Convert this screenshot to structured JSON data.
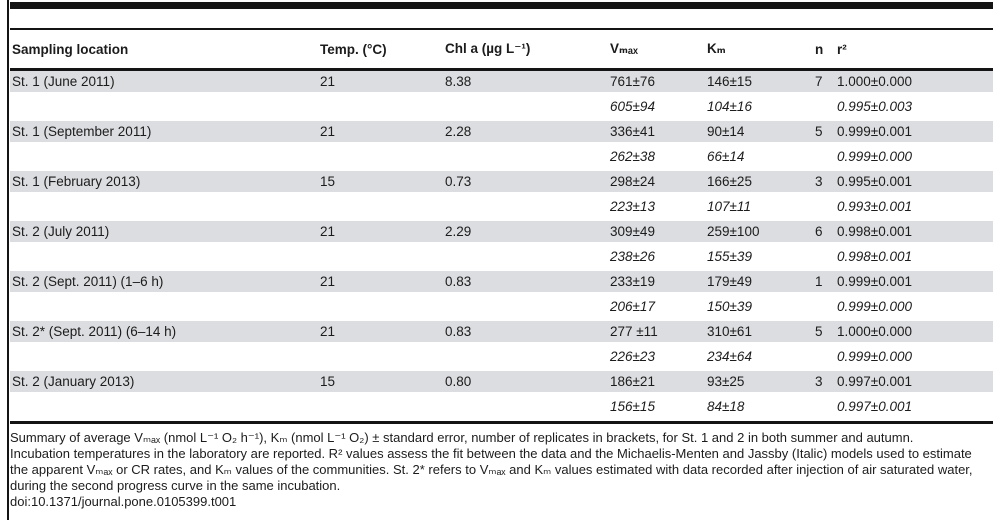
{
  "table": {
    "columns": [
      "Sampling location",
      "Temp. (°C)",
      "Chl a (µg L⁻¹)",
      "Vₘₐₓ",
      "Kₘ",
      "n",
      "r²"
    ],
    "rows": [
      {
        "shaded": true,
        "italic": false,
        "cells": [
          "St. 1 (June 2011)",
          "21",
          "8.38",
          "761±76",
          "146±15",
          "7",
          "1.000±0.000"
        ]
      },
      {
        "shaded": false,
        "italic": true,
        "cells": [
          "",
          "",
          "",
          "605±94",
          "104±16",
          "",
          "0.995±0.003"
        ]
      },
      {
        "shaded": true,
        "italic": false,
        "cells": [
          "St. 1 (September 2011)",
          "21",
          "2.28",
          "336±41",
          "90±14",
          "5",
          "0.999±0.001"
        ]
      },
      {
        "shaded": false,
        "italic": true,
        "cells": [
          "",
          "",
          "",
          "262±38",
          "66±14",
          "",
          "0.999±0.000"
        ]
      },
      {
        "shaded": true,
        "italic": false,
        "cells": [
          "St. 1 (February 2013)",
          "15",
          "0.73",
          "298±24",
          "166±25",
          "3",
          "0.995±0.001"
        ]
      },
      {
        "shaded": false,
        "italic": true,
        "cells": [
          "",
          "",
          "",
          "223±13",
          "107±11",
          "",
          "0.993±0.001"
        ]
      },
      {
        "shaded": true,
        "italic": false,
        "cells": [
          "St. 2 (July 2011)",
          "21",
          "2.29",
          "309±49",
          "259±100",
          "6",
          "0.998±0.001"
        ]
      },
      {
        "shaded": false,
        "italic": true,
        "cells": [
          "",
          "",
          "",
          "238±26",
          "155±39",
          "",
          "0.998±0.001"
        ]
      },
      {
        "shaded": true,
        "italic": false,
        "cells": [
          "St. 2 (Sept. 2011) (1–6 h)",
          "21",
          "0.83",
          "233±19",
          "179±49",
          "1",
          "0.999±0.001"
        ]
      },
      {
        "shaded": false,
        "italic": true,
        "cells": [
          "",
          "",
          "",
          "206±17",
          "150±39",
          "",
          "0.999±0.000"
        ]
      },
      {
        "shaded": true,
        "italic": false,
        "cells": [
          "St. 2* (Sept. 2011) (6–14 h)",
          "21",
          "0.83",
          "277 ±11",
          "310±61",
          "5",
          "1.000±0.000"
        ]
      },
      {
        "shaded": false,
        "italic": true,
        "cells": [
          "",
          "",
          "",
          "226±23",
          "234±64",
          "",
          "0.999±0.000"
        ]
      },
      {
        "shaded": true,
        "italic": false,
        "cells": [
          "St. 2 (January 2013)",
          "15",
          "0.80",
          "186±21",
          "93±25",
          "3",
          "0.997±0.001"
        ]
      },
      {
        "shaded": false,
        "italic": true,
        "cells": [
          "",
          "",
          "",
          "156±15",
          "84±18",
          "",
          "0.997±0.001"
        ]
      }
    ]
  },
  "footnote": {
    "lines": [
      "Summary of average Vₘₐₓ (nmol L⁻¹ O₂ h⁻¹), Kₘ (nmol L⁻¹ O₂) ± standard error, number of replicates in brackets, for St. 1 and 2 in both summer and autumn.",
      "Incubation temperatures in the laboratory are reported. R² values assess the fit between the data and the Michaelis-Menten and Jassby (Italic) models used to estimate",
      "the apparent Vₘₐₓ or CR rates, and Kₘ values of the communities. St. 2* refers to Vₘₐₓ and Kₘ values estimated with data recorded after injection of air saturated water,",
      "during the second progress curve in the same incubation."
    ],
    "doi": "doi:10.1371/journal.pone.0105399.t001"
  },
  "colors": {
    "row_shade": "#dcdde0",
    "rule": "#141414",
    "text": "#1c1c1c"
  }
}
